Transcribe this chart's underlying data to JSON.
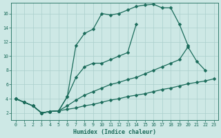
{
  "xlabel": "Humidex (Indice chaleur)",
  "background_color": "#cde8e5",
  "grid_color": "#aacfcc",
  "line_color": "#1a6b5a",
  "xlim": [
    -0.5,
    23.5
  ],
  "ylim": [
    1,
    17.5
  ],
  "xticks": [
    0,
    1,
    2,
    3,
    4,
    5,
    6,
    7,
    8,
    9,
    10,
    11,
    12,
    13,
    14,
    15,
    16,
    17,
    18,
    19,
    20,
    21,
    22,
    23
  ],
  "yticks": [
    2,
    4,
    6,
    8,
    10,
    12,
    14,
    16
  ],
  "line1_x": [
    0,
    1,
    2,
    3,
    4,
    5,
    6,
    7,
    8,
    9,
    10,
    11,
    12,
    13,
    14,
    15,
    16,
    17,
    18,
    19,
    20
  ],
  "line1_y": [
    4,
    3.5,
    3,
    2,
    2.2,
    2.3,
    4.3,
    11.5,
    13.2,
    13.8,
    16.0,
    15.8,
    16.0,
    16.5,
    17.0,
    17.2,
    17.3,
    16.8,
    16.8,
    14.5,
    11.5
  ],
  "line2_x": [
    0,
    1,
    2,
    3,
    4,
    5,
    6,
    7,
    8,
    9,
    10,
    11,
    12,
    13,
    14
  ],
  "line2_y": [
    4,
    3.5,
    3,
    2,
    2.2,
    2.3,
    4.3,
    7.0,
    8.5,
    9.0,
    9.0,
    9.5,
    10,
    10.5,
    14.5
  ],
  "line3_x": [
    0,
    1,
    2,
    3,
    4,
    5,
    6,
    7,
    8,
    9,
    10,
    11,
    12,
    13,
    14,
    15,
    16,
    17,
    18,
    19,
    20,
    21,
    22
  ],
  "line3_y": [
    4,
    3.5,
    3,
    2,
    2.2,
    2.3,
    3.0,
    3.8,
    4.5,
    5.0,
    5.5,
    6.0,
    6.3,
    6.7,
    7.0,
    7.5,
    8.0,
    8.5,
    9.0,
    9.5,
    11.3,
    9.3,
    8.0
  ],
  "line4_x": [
    0,
    1,
    2,
    3,
    4,
    5,
    6,
    7,
    8,
    9,
    10,
    11,
    12,
    13,
    14,
    15,
    16,
    17,
    18,
    19,
    20,
    21,
    22,
    23
  ],
  "line4_y": [
    4,
    3.5,
    3,
    2,
    2.2,
    2.3,
    2.5,
    2.7,
    3.0,
    3.2,
    3.5,
    3.8,
    4.0,
    4.3,
    4.5,
    4.7,
    5.0,
    5.3,
    5.5,
    5.8,
    6.1,
    6.3,
    6.5,
    6.8
  ]
}
